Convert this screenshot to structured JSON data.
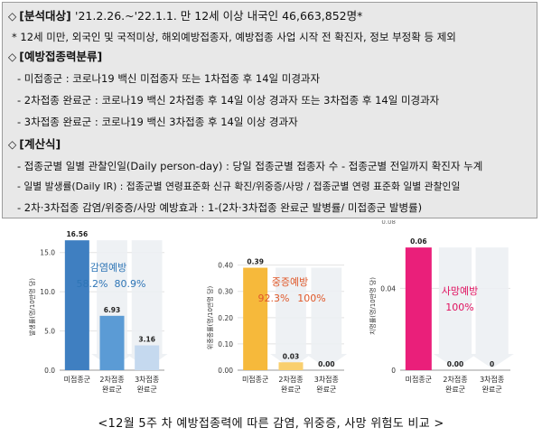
{
  "notes": {
    "analysis_label": "[분석대상]",
    "analysis_text": "'21.2.26.~'22.1.1. 만 12세 이상 내국인 46,663,852명*",
    "analysis_footnote": "* 12세 미만, 외국인 및 국적미상, 해외예방접종자, 예방접종 사업 시작 전 확진자, 정보 부정확 등 제외",
    "class_label": "[예방접종력분류]",
    "class_items": [
      "- 미접종군 : 코로나19 백신 미접종자 또는 1차접종 후 14일 미경과자",
      "- 2차접종 완료군 : 코로나19 백신 2차접종 후 14일 이상 경과자 또는 3차접종 후 14일 미경과자",
      "- 3차접종 완료군 : 코로나19 백신 3차접종 후 14일 이상 경과자"
    ],
    "calc_label": "[계산식]",
    "calc_items": [
      "- 접종군별 일별 관찰인일(Daily person-day) : 당일 접종군별 접종자 수 - 접종군별 전일까지 확진자 누계",
      "- 일별 발생률(Daily IR) : 접종군별 연령표준화 신규 확진/위중증/사망 / 접종군별 연령 표준화 일별 관찰인일",
      "- 2차·3차접종 감염/위중증/사망 예방효과 : 1-(2차·3차접종 완료군 발병률/ 미접종군 발병률)"
    ]
  },
  "caption": "<12월 5주 차 예방접종력에 따른 감염, 위중증, 사망 위험도 비교 >",
  "chart_data": [
    {
      "type": "bar",
      "title": "",
      "categories": [
        "미접종군",
        "2차접종 완료군",
        "3차접종 완료군"
      ],
      "values": [
        16.56,
        6.93,
        3.16
      ],
      "value_labels": [
        "16.56",
        "6.93",
        "3.16"
      ],
      "ylabel": "발생률(명/10만명 당)",
      "ylim": [
        0,
        17.5
      ],
      "yticks": [
        0,
        5,
        10,
        15
      ],
      "ytick_labels": [
        "0.0",
        "5.0",
        "10.0",
        "15.0"
      ],
      "bar_colors": [
        "#3f7fc1",
        "#5b9bd5",
        "#c5d9ef"
      ],
      "annotation_title": "감염예방",
      "annotation_values": [
        "58.2%",
        "80.9%"
      ],
      "annotation_color": "#2e75b6"
    },
    {
      "type": "bar",
      "title": "",
      "categories": [
        "미접종군",
        "2차접종 완료군",
        "3차접종 완료군"
      ],
      "values": [
        0.39,
        0.03,
        0.0
      ],
      "value_labels": [
        "0.39",
        "0.03",
        "0.00"
      ],
      "ylabel": "위중증률(명/10만명 당)",
      "ylim": [
        0,
        0.44
      ],
      "yticks": [
        0,
        0.1,
        0.2,
        0.3,
        0.4
      ],
      "ytick_labels": [
        "0.00",
        "0.10",
        "0.20",
        "0.30",
        "0.40"
      ],
      "bar_colors": [
        "#f6b93b",
        "#f9cf6e",
        "#fbe3a6"
      ],
      "annotation_title": "중증예방",
      "annotation_values": [
        "92.3%",
        "100%"
      ],
      "annotation_color": "#e0592a"
    },
    {
      "type": "bar",
      "title": "",
      "categories": [
        "미접종군",
        "2차접종 완료군",
        "3차접종 완료군"
      ],
      "values": [
        0.06,
        0.0,
        0
      ],
      "value_labels": [
        "0.06",
        "0.00",
        "0"
      ],
      "ylabel": "치명률(명/10만명 당)",
      "ylim": [
        0,
        0.068
      ],
      "yticks": [
        0,
        0.04
      ],
      "ytick_labels": [
        "0",
        "0.04"
      ],
      "top_label": "0.08",
      "bar_colors": [
        "#ea1f7a",
        "#f06fa6",
        "#f6a9c9"
      ],
      "annotation_title": "사망예방",
      "annotation_values": [
        "100%"
      ],
      "annotation_color": "#e0115f"
    }
  ]
}
